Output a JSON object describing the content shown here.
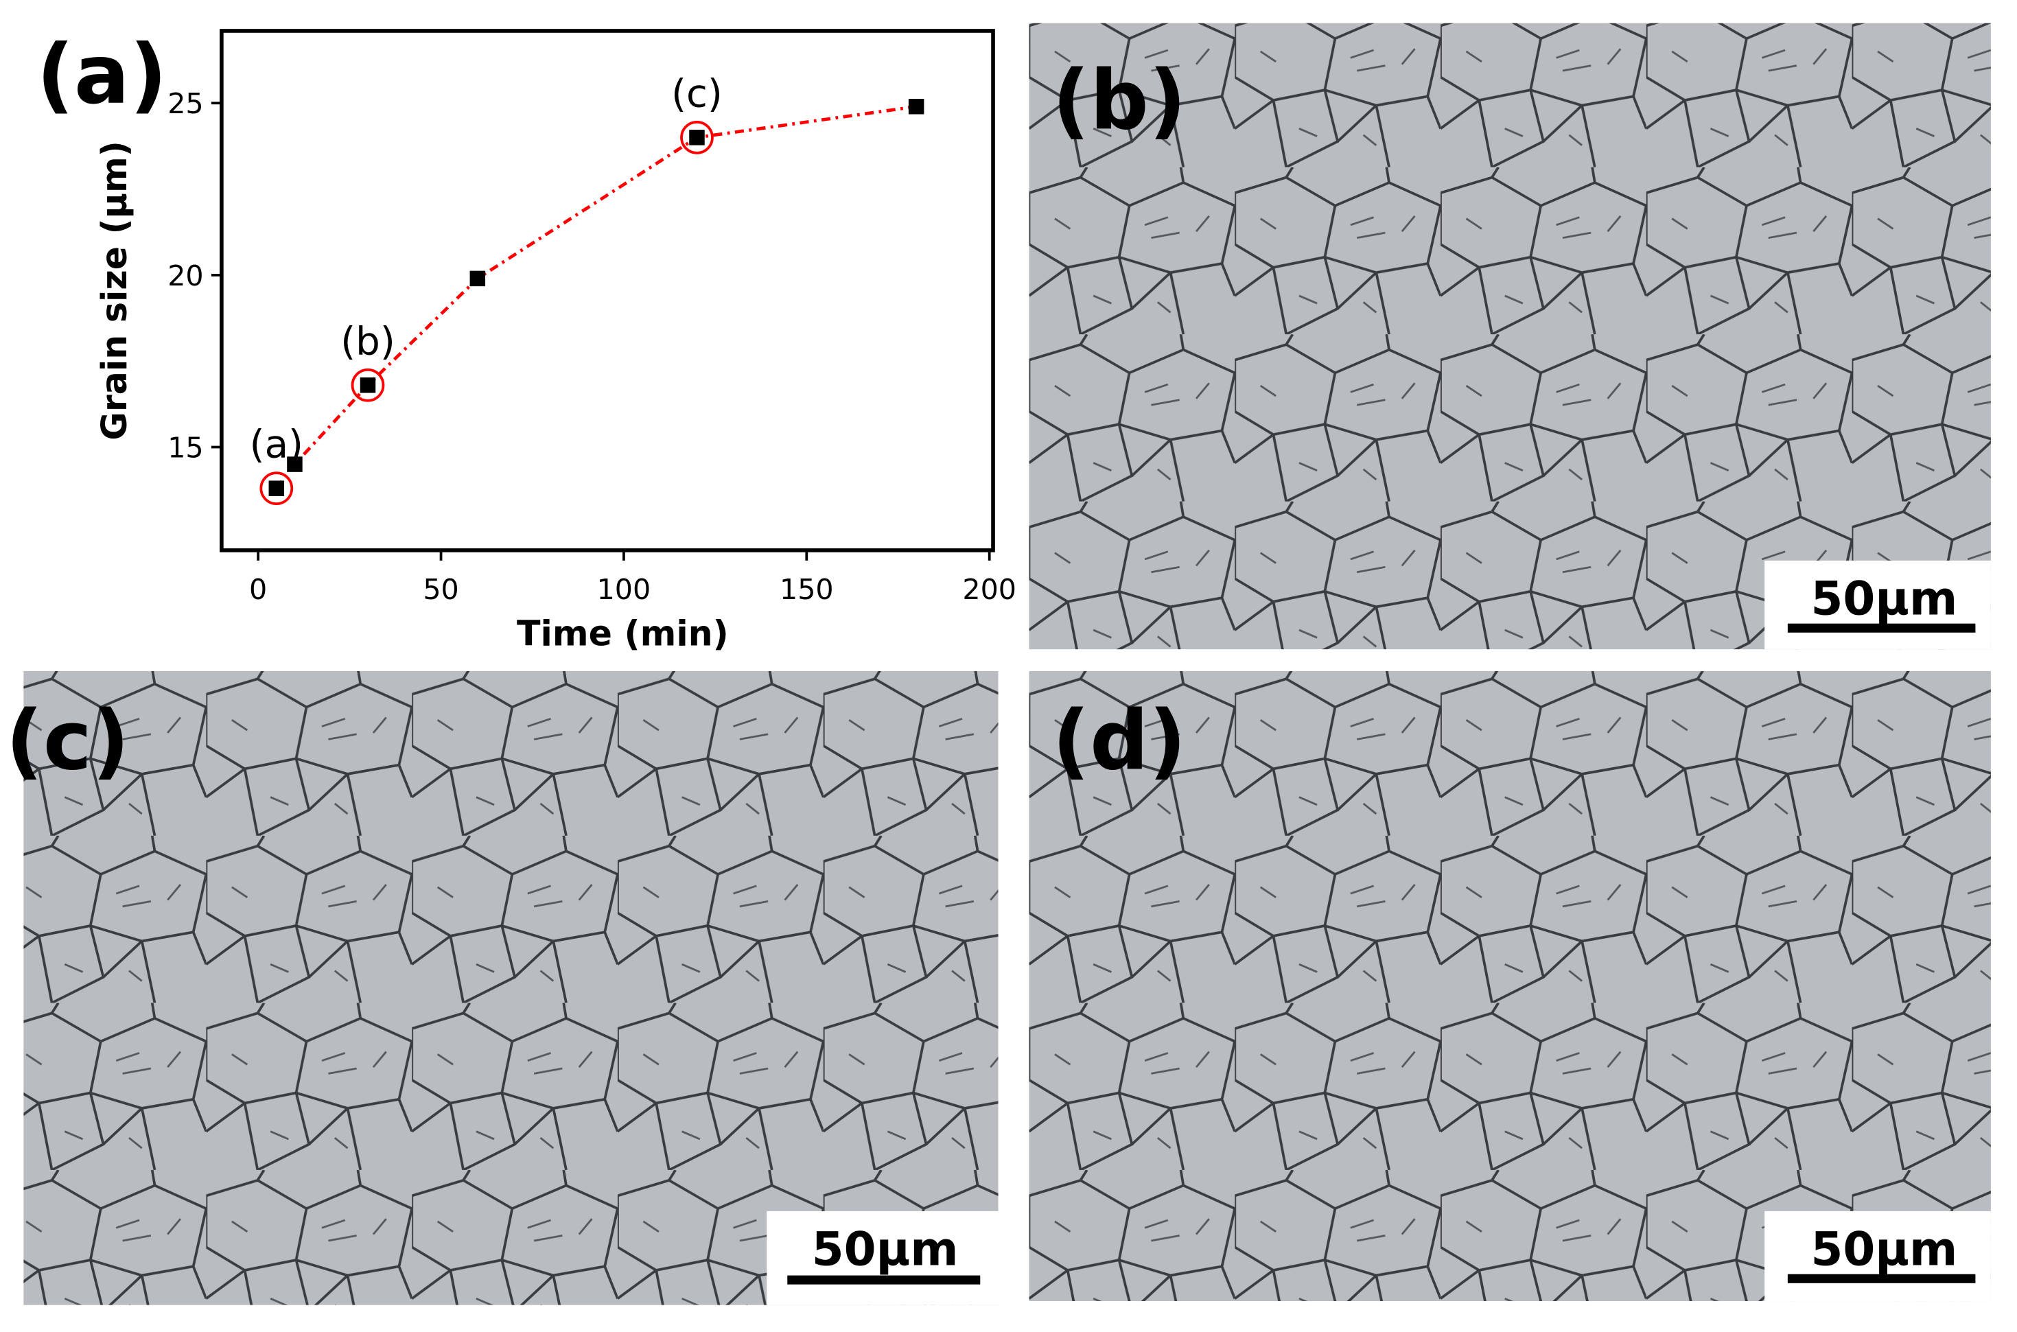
{
  "panel_labels": [
    "(a)",
    "(b)",
    "(c)",
    "(d)"
  ],
  "scale_bars": [
    "50µm",
    "50µm",
    "50µm"
  ],
  "chart_data": {
    "type": "line",
    "xlabel": "Time (min)",
    "ylabel": "Grain size (µm)",
    "x": [
      5,
      10,
      30,
      60,
      120,
      180
    ],
    "values": [
      13.8,
      14.5,
      16.8,
      19.9,
      24.0,
      24.9
    ],
    "color": "#ff0000",
    "marker_color": "#000000",
    "annotations": [
      "(a)",
      "(b)",
      "(c)"
    ],
    "xlim": [
      -10,
      201
    ],
    "ylim": [
      12,
      27.1
    ],
    "xticks": [
      0,
      50,
      100,
      150,
      200
    ],
    "yticks": [
      15,
      20,
      25
    ]
  }
}
